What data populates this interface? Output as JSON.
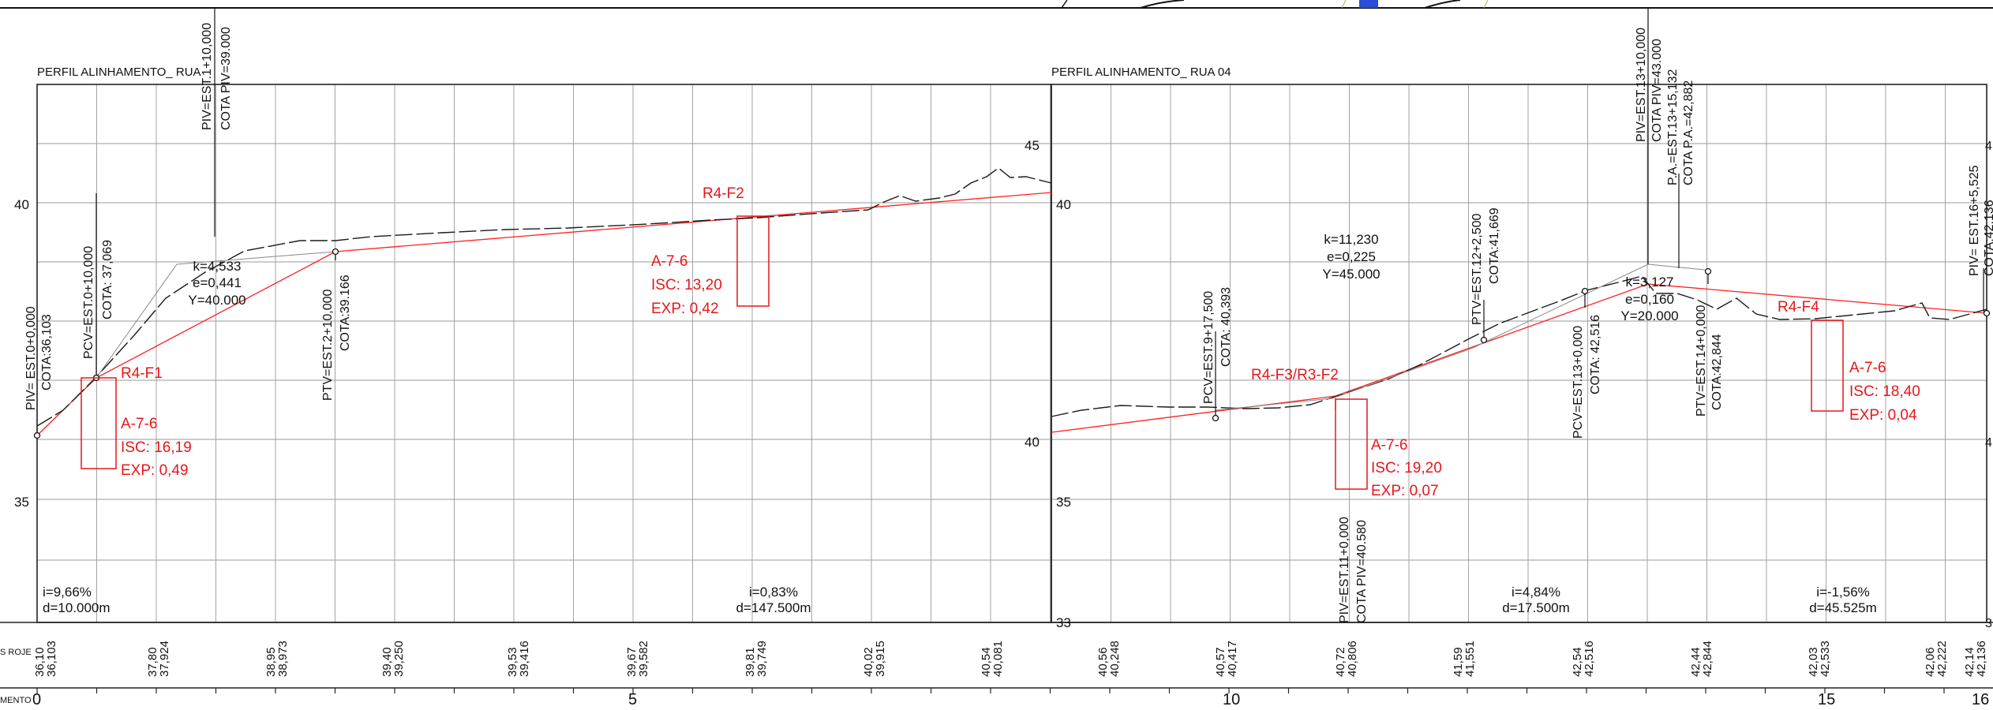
{
  "colors": {
    "ink": "#111111",
    "grid": "#9a9a9a",
    "design_line": "#ff2020",
    "annotation_red": "#e8161b"
  },
  "profile_left": {
    "title": "PERFIL ALINHAMENTO_ RUA",
    "elevation_ticks": [
      "40",
      "35"
    ],
    "vertical_labels": [
      "PIV= EST.0+0,000",
      "COTA:36,103",
      "PCV=EST.0+10,000",
      "COTA: 37,069",
      "PIV=EST.1+10,000",
      "COTA PIV=39.000",
      "PTV=EST.2+10,000",
      "COTA:39.166"
    ],
    "curve": [
      "k=4,533",
      "e=0,441",
      "Y=40.000"
    ],
    "sample_1": {
      "id": "R4-F1",
      "soil": "A-7-6",
      "isc": "ISC: 16,19",
      "exp": "EXP: 0,49"
    },
    "sample_2": {
      "id": "R4-F2",
      "soil": "A-7-6",
      "isc": "ISC: 13,20",
      "exp": "EXP: 0,42"
    },
    "grades": [
      {
        "i": "i=9,66%",
        "d": "d=10.000m"
      },
      {
        "i": "i=0,83%",
        "d": "d=147.500m"
      }
    ]
  },
  "profile_right": {
    "title": "PERFIL ALINHAMENTO_ RUA 04",
    "elevation_ticks": [
      "45",
      "40",
      "40",
      "35",
      "33"
    ],
    "vertical_labels": [
      "PCV=EST.9+17,500",
      "COTA: 40,393",
      "PIV=EST.11+0,000",
      "COTA PIV=40.580",
      "PTV=EST.12+2,500",
      "COTA:41,669",
      "PCV=EST.13+0,000",
      "COTA: 42,516",
      "PIV=EST.13+10,000",
      "COTA PIV=43.000",
      "P.A.=EST.13+15,132",
      "COTA P.A.=42,882",
      "PTV=EST.14+0,000",
      "COTA:42,844",
      "PIV= EST.16+5,525",
      "COTA:42,136"
    ],
    "curve_1": [
      "k=11,230",
      "e=0,225",
      "Y=45.000"
    ],
    "curve_2": [
      "k=3,127",
      "e=0,160",
      "Y=20.000"
    ],
    "sample_3": {
      "id": "R4-F3/R3-F2",
      "soil": "A-7-6",
      "isc": "ISC: 19,20",
      "exp": "EXP: 0,07"
    },
    "sample_4": {
      "id": "R4-F4",
      "soil": "A-7-6",
      "isc": "ISC: 18,40",
      "exp": "EXP: 0,04"
    },
    "grades": [
      {
        "i": "i=4,84%",
        "d": "d=17.500m"
      },
      {
        "i": "i=-1,56%",
        "d": "d=45.525m"
      }
    ]
  },
  "elevation_pairs": [
    [
      "36,10",
      "36,103"
    ],
    [
      "37,80",
      "37,924"
    ],
    [
      "38,95",
      "38,973"
    ],
    [
      "39,40",
      "39,250"
    ],
    [
      "39,53",
      "39,416"
    ],
    [
      "39,67",
      "39,582"
    ],
    [
      "39,81",
      "39,749"
    ],
    [
      "40,02",
      "39,915"
    ],
    [
      "40,54",
      "40,081"
    ],
    [
      "40,56",
      "40,248"
    ],
    [
      "40,57",
      "40,417"
    ],
    [
      "40,72",
      "40,806"
    ],
    [
      "41,59",
      "41,551"
    ],
    [
      "42,54",
      "42,516"
    ],
    [
      "42,44",
      "42,844"
    ],
    [
      "42,03",
      "42,533"
    ],
    [
      "42,06",
      "42,222"
    ],
    [
      "42,14",
      "42,136"
    ]
  ],
  "station_labels": [
    "0",
    "5",
    "10",
    "15",
    "16"
  ],
  "row_labels": {
    "existing_project": "S\nROJE",
    "alignment": "MENTO"
  },
  "right_edge_ticks": [
    "4",
    "4",
    "3"
  ]
}
